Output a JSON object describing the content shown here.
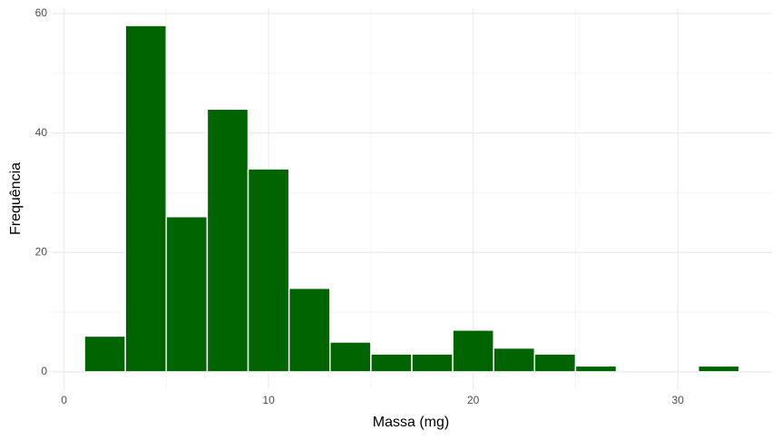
{
  "chart_data": {
    "type": "histogram",
    "x_label": "Massa (mg)",
    "y_label": "Frequência",
    "bins": [
      1,
      3,
      5,
      7,
      9,
      11,
      13,
      15,
      17,
      19,
      21,
      23,
      25,
      27,
      29,
      31,
      33
    ],
    "values": [
      6,
      58,
      26,
      44,
      34,
      14,
      5,
      3,
      3,
      7,
      4,
      3,
      1,
      0,
      0,
      1
    ],
    "color": "#006400",
    "xlim": [
      -0.6,
      34.6
    ],
    "xticks": [
      0,
      10,
      20,
      30
    ],
    "ylim": [
      -2.9,
      60.9
    ],
    "yticks": [
      0,
      20,
      40,
      60
    ],
    "grid": true
  }
}
